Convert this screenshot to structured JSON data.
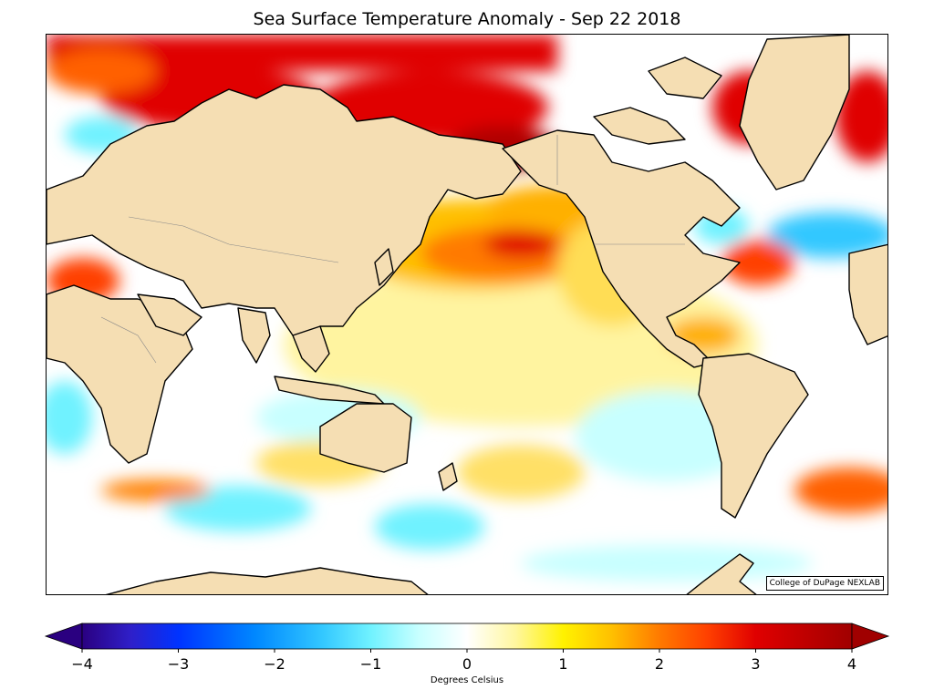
{
  "title": "Sea Surface Temperature Anomaly - Sep 22 2018",
  "credit": "College of DuPage NEXLAB",
  "colorbar": {
    "label": "Degrees Celsius",
    "min": -4,
    "max": 4,
    "ticks": [
      "−4",
      "−3",
      "−2",
      "−1",
      "0",
      "1",
      "2",
      "3",
      "4"
    ],
    "extend": "both",
    "stops": [
      {
        "v": -4,
        "c": "#2a0080"
      },
      {
        "v": -3.5,
        "c": "#2f1fc8"
      },
      {
        "v": -3,
        "c": "#0033ff"
      },
      {
        "v": -2.2,
        "c": "#0088ff"
      },
      {
        "v": -1.5,
        "c": "#33c8ff"
      },
      {
        "v": -1,
        "c": "#70f2ff"
      },
      {
        "v": -0.5,
        "c": "#c8ffff"
      },
      {
        "v": 0,
        "c": "#ffffff"
      },
      {
        "v": 0.5,
        "c": "#fff7a0"
      },
      {
        "v": 1,
        "c": "#fff200"
      },
      {
        "v": 1.5,
        "c": "#ffc000"
      },
      {
        "v": 2,
        "c": "#ff7a00"
      },
      {
        "v": 2.5,
        "c": "#ff4000"
      },
      {
        "v": 3,
        "c": "#e00000"
      },
      {
        "v": 4,
        "c": "#a00000"
      }
    ]
  },
  "land_color": "#f5deb3",
  "coast_color": "#000000"
}
